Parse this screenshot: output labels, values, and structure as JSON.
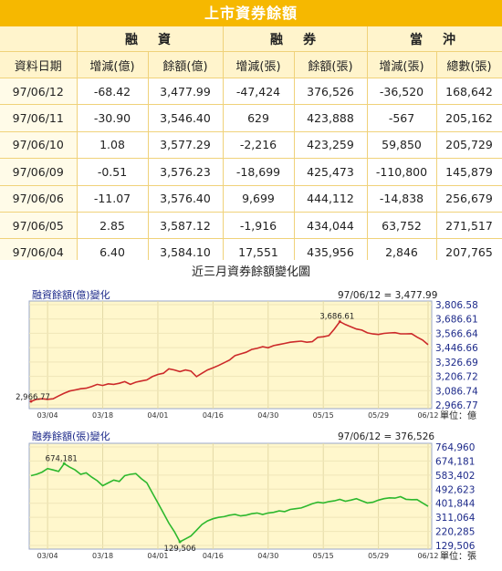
{
  "banner_title": "上市資券餘額",
  "table": {
    "group_headers": [
      "融　資",
      "融　券",
      "當　沖"
    ],
    "date_header": "資料日期",
    "column_headers": [
      "增減(億)",
      "餘額(億)",
      "增減(張)",
      "餘額(張)",
      "增減(張)",
      "總數(張)"
    ],
    "rows": [
      {
        "date": "97/06/12",
        "fin_change": "-68.42",
        "fin_balance": "3,477.99",
        "short_change": "-47,424",
        "short_balance": "376,526",
        "day_change": "-36,520",
        "day_total": "168,642"
      },
      {
        "date": "97/06/11",
        "fin_change": "-30.90",
        "fin_balance": "3,546.40",
        "short_change": "629",
        "short_balance": "423,888",
        "day_change": "-567",
        "day_total": "205,162"
      },
      {
        "date": "97/06/10",
        "fin_change": "1.08",
        "fin_balance": "3,577.29",
        "short_change": "-2,216",
        "short_balance": "423,259",
        "day_change": "59,850",
        "day_total": "205,729"
      },
      {
        "date": "97/06/09",
        "fin_change": "-0.51",
        "fin_balance": "3,576.23",
        "short_change": "-18,699",
        "short_balance": "425,473",
        "day_change": "-110,800",
        "day_total": "145,879"
      },
      {
        "date": "97/06/06",
        "fin_change": "-11.07",
        "fin_balance": "3,576.40",
        "short_change": "9,699",
        "short_balance": "444,112",
        "day_change": "-14,838",
        "day_total": "256,679"
      },
      {
        "date": "97/06/05",
        "fin_change": "2.85",
        "fin_balance": "3,587.12",
        "short_change": "-1,916",
        "short_balance": "434,044",
        "day_change": "63,752",
        "day_total": "271,517"
      },
      {
        "date": "97/06/04",
        "fin_change": "6.40",
        "fin_balance": "3,584.10",
        "short_change": "17,551",
        "short_balance": "435,956",
        "day_change": "2,846",
        "day_total": "207,765"
      }
    ]
  },
  "charts_title": "近三月資券餘額變化圖",
  "chart_data": [
    {
      "type": "line",
      "title": "融資餘額(億)變化",
      "latest_label": "97/06/12 = 3,477.99",
      "unit_label": "單位：億",
      "color": "#cc2a2a",
      "bg": "#fff7cc",
      "x_ticks": [
        "03/04",
        "03/18",
        "04/01",
        "04/16",
        "04/30",
        "05/15",
        "05/29",
        "06/12"
      ],
      "x_tick_index": [
        3,
        13,
        23,
        33,
        43,
        53,
        63,
        72
      ],
      "y_ticks": [
        "3,806.58",
        "3,686.61",
        "3,566.64",
        "3,446.66",
        "3,326.69",
        "3,206.72",
        "3,086.74",
        "2,966.77"
      ],
      "ylim": [
        2966.77,
        3806.58
      ],
      "max_label": "3,686.61",
      "max_index": 56,
      "min_label": "2,966.77",
      "min_index": 0,
      "values": [
        2966.77,
        2985,
        2990,
        2985,
        2990,
        3015,
        3040,
        3060,
        3070,
        3080,
        3085,
        3100,
        3120,
        3110,
        3125,
        3120,
        3130,
        3145,
        3120,
        3140,
        3150,
        3160,
        3190,
        3210,
        3220,
        3260,
        3250,
        3235,
        3250,
        3240,
        3190,
        3220,
        3250,
        3270,
        3290,
        3315,
        3340,
        3380,
        3395,
        3410,
        3435,
        3445,
        3460,
        3450,
        3470,
        3480,
        3490,
        3500,
        3505,
        3510,
        3500,
        3505,
        3545,
        3550,
        3560,
        3620,
        3686.61,
        3660,
        3640,
        3620,
        3610,
        3585,
        3575,
        3570,
        3580,
        3584.1,
        3587.12,
        3576.4,
        3576.23,
        3577.29,
        3546.4,
        3520,
        3477.99
      ]
    },
    {
      "type": "line",
      "title": "融券餘額(張)變化",
      "latest_label": "97/06/12 = 376,526",
      "unit_label": "單位：張",
      "color": "#2db82d",
      "bg": "#fff7cc",
      "x_ticks": [
        "03/04",
        "03/18",
        "04/01",
        "04/16",
        "04/30",
        "05/15",
        "05/29",
        "06/12"
      ],
      "x_tick_index": [
        3,
        13,
        23,
        33,
        43,
        53,
        63,
        72
      ],
      "y_ticks": [
        "764,960",
        "674,181",
        "583,402",
        "492,623",
        "401,844",
        "311,064",
        "220,285",
        "129,506"
      ],
      "ylim": [
        129506,
        764960
      ],
      "max_label": "674,181",
      "max_index": 6,
      "min_label": "129,506",
      "min_index": 27,
      "values": [
        590000,
        600000,
        615000,
        640000,
        630000,
        620000,
        674181,
        650000,
        630000,
        600000,
        610000,
        580000,
        555000,
        520000,
        540000,
        560000,
        550000,
        590000,
        600000,
        605000,
        570000,
        540000,
        470000,
        400000,
        330000,
        260000,
        200000,
        129506,
        150000,
        170000,
        210000,
        250000,
        275000,
        290000,
        300000,
        305000,
        315000,
        320000,
        310000,
        315000,
        325000,
        330000,
        320000,
        330000,
        335000,
        345000,
        340000,
        355000,
        360000,
        365000,
        380000,
        395000,
        405000,
        400000,
        410000,
        415000,
        425000,
        412000,
        420000,
        430000,
        415000,
        400000,
        405000,
        420000,
        430000,
        435956,
        434044,
        444112,
        425473,
        423259,
        423888,
        400000,
        376526
      ]
    }
  ]
}
